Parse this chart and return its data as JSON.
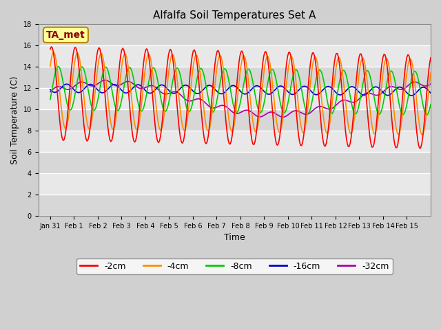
{
  "title": "Alfalfa Soil Temperatures Set A",
  "xlabel": "Time",
  "ylabel": "Soil Temperature (C)",
  "ylim": [
    0,
    18
  ],
  "yticks": [
    0,
    2,
    4,
    6,
    8,
    10,
    12,
    14,
    16,
    18
  ],
  "plot_bg_color": "#e8e8e8",
  "fig_bg_color": "#d0d0d0",
  "ta_met_label": "TA_met",
  "ta_met_box_color": "#ffff99",
  "ta_met_text_color": "#8b0000",
  "ta_met_edge_color": "#b8860b",
  "legend_labels": [
    "-2cm",
    "-4cm",
    "-8cm",
    "-16cm",
    "-32cm"
  ],
  "line_colors": [
    "#ff0000",
    "#ff8c00",
    "#00cc00",
    "#0000cc",
    "#aa00aa"
  ],
  "tick_labels": [
    "Jan 31",
    "Feb 1",
    "Feb 2",
    "Feb 3",
    "Feb 4",
    "Feb 5",
    "Feb 6",
    "Feb 7",
    "Feb 8",
    "Feb 9",
    "Feb 10",
    "Feb 11",
    "Feb 12",
    "Feb 13",
    "Feb 14",
    "Feb 15"
  ]
}
